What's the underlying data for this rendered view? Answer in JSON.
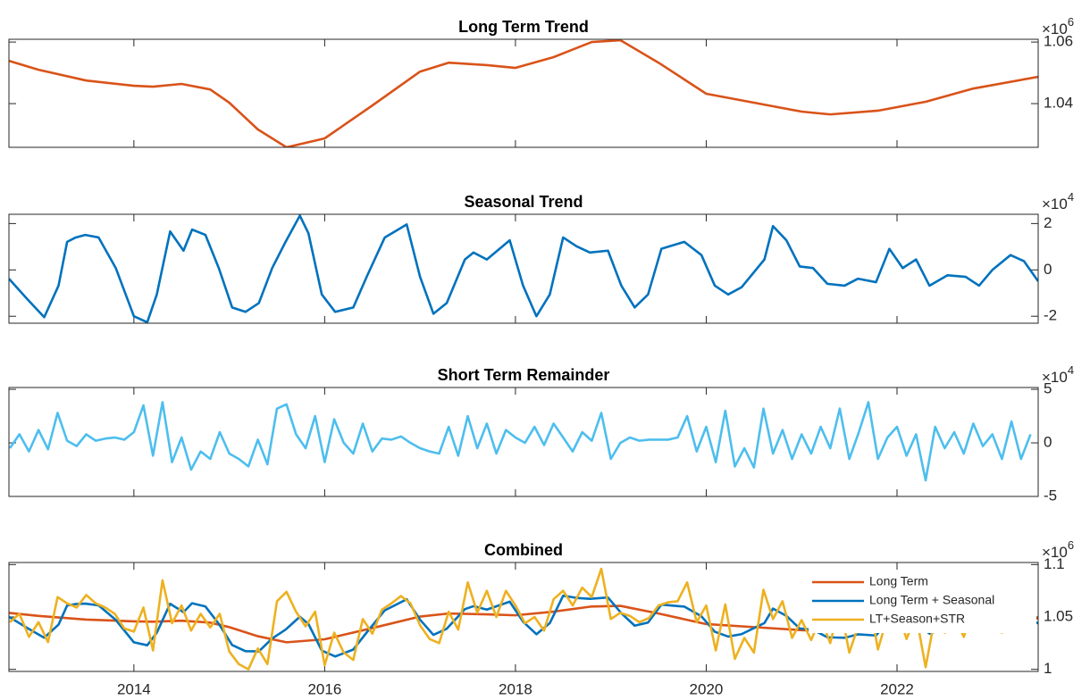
{
  "chart_data": [
    {
      "type": "line",
      "title": "Long Term Trend",
      "y_multiplier": "×10",
      "y_multiplier_exponent": "6",
      "xlim": [
        2012.69,
        2023.48
      ],
      "xticks": [
        2014,
        2016,
        2018,
        2020,
        2022
      ],
      "ylim": [
        1.0258,
        1.0609
      ],
      "yticks": [
        1.04,
        1.06
      ],
      "color": "#D95319",
      "x": [
        2012.69,
        2013,
        2013.5,
        2014,
        2014.2,
        2014.5,
        2014.8,
        2015,
        2015.3,
        2015.6,
        2016,
        2016.5,
        2017,
        2017.3,
        2017.7,
        2018,
        2018.4,
        2018.8,
        2019.1,
        2019.5,
        2020,
        2020.5,
        2021,
        2021.3,
        2021.8,
        2022.3,
        2022.8,
        2023.48
      ],
      "values": [
        1.0539,
        1.051,
        1.0475,
        1.0458,
        1.0455,
        1.0464,
        1.0446,
        1.0403,
        1.0316,
        1.0258,
        1.0287,
        1.0394,
        1.0504,
        1.0533,
        1.0525,
        1.0516,
        1.0551,
        1.06,
        1.0606,
        1.0533,
        1.0432,
        1.0403,
        1.0374,
        1.0365,
        1.0377,
        1.0406,
        1.0449,
        1.0487
      ]
    },
    {
      "type": "line",
      "title": "Seasonal Trend",
      "y_multiplier": "×10",
      "y_multiplier_exponent": "4",
      "xlim": [
        2012.69,
        2023.48
      ],
      "xticks": [
        2014,
        2016,
        2018,
        2020,
        2022
      ],
      "ylim": [
        -2.3,
        2.4
      ],
      "yticks": [
        -2,
        0,
        2
      ],
      "color": "#0072BD",
      "x": [
        2012.69,
        2012.88,
        2013.06,
        2013.21,
        2013.3,
        2013.39,
        2013.49,
        2013.63,
        2013.81,
        2014,
        2014.14,
        2014.24,
        2014.38,
        2014.52,
        2014.61,
        2014.75,
        2014.89,
        2015.03,
        2015.17,
        2015.31,
        2015.45,
        2015.59,
        2015.74,
        2015.83,
        2015.97,
        2016.11,
        2016.3,
        2016.44,
        2016.63,
        2016.86,
        2017,
        2017.14,
        2017.28,
        2017.47,
        2017.56,
        2017.7,
        2017.94,
        2018.08,
        2018.22,
        2018.36,
        2018.5,
        2018.64,
        2018.78,
        2018.97,
        2019.11,
        2019.25,
        2019.39,
        2019.53,
        2019.77,
        2019.95,
        2020.09,
        2020.23,
        2020.37,
        2020.61,
        2020.7,
        2020.84,
        2020.98,
        2021.12,
        2021.27,
        2021.45,
        2021.59,
        2021.78,
        2021.92,
        2022.06,
        2022.2,
        2022.34,
        2022.53,
        2022.72,
        2022.86,
        2023,
        2023.19,
        2023.33,
        2023.48
      ],
      "values": [
        -0.38,
        -1.25,
        -2.04,
        -0.68,
        1.21,
        1.4,
        1.51,
        1.4,
        0.08,
        -2.0,
        -2.26,
        -1.06,
        1.66,
        0.83,
        1.74,
        1.51,
        0.08,
        -1.62,
        -1.81,
        -1.43,
        0.08,
        1.21,
        2.34,
        1.58,
        -1.06,
        -1.81,
        -1.62,
        -0.3,
        1.4,
        1.96,
        -0.3,
        -1.89,
        -1.43,
        0.45,
        0.75,
        0.45,
        1.28,
        -0.68,
        -2.0,
        -1.06,
        1.4,
        1.02,
        0.75,
        0.83,
        -0.68,
        -1.62,
        -1.06,
        0.91,
        1.21,
        0.64,
        -0.68,
        -1.06,
        -0.75,
        0.45,
        1.89,
        1.28,
        0.15,
        0.08,
        -0.6,
        -0.68,
        -0.38,
        -0.53,
        0.91,
        0.08,
        0.45,
        -0.68,
        -0.23,
        -0.3,
        -0.68,
        0,
        0.64,
        0.38,
        -0.49
      ]
    },
    {
      "type": "line",
      "title": "Short Term Remainder",
      "y_multiplier": "×10",
      "y_multiplier_exponent": "4",
      "xlim": [
        2012.69,
        2023.48
      ],
      "xticks": [
        2014,
        2016,
        2018,
        2020,
        2022
      ],
      "ylim": [
        -5,
        5.17
      ],
      "yticks": [
        -5,
        0,
        5
      ],
      "color": "#4DBEEE",
      "x": [
        2012.7,
        2012.8,
        2012.9,
        2013,
        2013.1,
        2013.2,
        2013.3,
        2013.4,
        2013.5,
        2013.6,
        2013.7,
        2013.8,
        2013.9,
        2014,
        2014.1,
        2014.2,
        2014.3,
        2014.4,
        2014.5,
        2014.6,
        2014.7,
        2014.8,
        2014.9,
        2015,
        2015.1,
        2015.2,
        2015.3,
        2015.4,
        2015.5,
        2015.6,
        2015.7,
        2015.8,
        2015.9,
        2016,
        2016.1,
        2016.2,
        2016.3,
        2016.4,
        2016.5,
        2016.6,
        2016.7,
        2016.8,
        2016.9,
        2017,
        2017.1,
        2017.2,
        2017.3,
        2017.4,
        2017.5,
        2017.6,
        2017.7,
        2017.8,
        2017.9,
        2018,
        2018.1,
        2018.2,
        2018.3,
        2018.4,
        2018.5,
        2018.6,
        2018.7,
        2018.8,
        2018.9,
        2019,
        2019.1,
        2019.2,
        2019.3,
        2019.4,
        2019.5,
        2019.6,
        2019.7,
        2019.8,
        2019.9,
        2020,
        2020.1,
        2020.2,
        2020.3,
        2020.4,
        2020.5,
        2020.6,
        2020.7,
        2020.8,
        2020.9,
        2021,
        2021.1,
        2021.2,
        2021.3,
        2021.4,
        2021.5,
        2021.6,
        2021.7,
        2021.8,
        2021.9,
        2022,
        2022.1,
        2022.2,
        2022.3,
        2022.4,
        2022.5,
        2022.6,
        2022.7,
        2022.8,
        2022.9,
        2023,
        2023.1,
        2023.2,
        2023.3,
        2023.4
      ],
      "values": [
        -0.5,
        0.8,
        -0.8,
        1.2,
        -0.6,
        2.8,
        0.2,
        -0.3,
        0.8,
        0.2,
        0.4,
        0.5,
        0.3,
        1.0,
        3.5,
        -1.2,
        3.8,
        -1.8,
        0.5,
        -2.5,
        -0.8,
        -1.5,
        1.0,
        -1.0,
        -1.5,
        -2.2,
        0.3,
        -2.0,
        3.2,
        3.6,
        0.8,
        -0.5,
        2.5,
        -1.8,
        2.2,
        0.0,
        -1.0,
        1.8,
        -0.8,
        0.4,
        0.3,
        0.6,
        0.0,
        -0.5,
        -0.8,
        -1.0,
        1.5,
        -1.2,
        2.5,
        -0.5,
        1.8,
        -1.0,
        1.2,
        0.5,
        0.0,
        1.5,
        -0.2,
        1.8,
        0.5,
        -0.8,
        1.0,
        0.2,
        2.8,
        -1.5,
        0.0,
        0.5,
        0.2,
        0.3,
        0.3,
        0.3,
        0.5,
        2.5,
        -0.8,
        1.5,
        -1.8,
        3.0,
        -2.2,
        -0.5,
        -2.3,
        3.2,
        -1.0,
        1.2,
        -1.5,
        0.8,
        -1.0,
        1.5,
        -0.5,
        3.2,
        -1.5,
        1.0,
        3.8,
        -1.5,
        0.5,
        1.5,
        -1.2,
        0.8,
        -3.5,
        1.5,
        -0.5,
        1.0,
        -1.0,
        1.8,
        -0.3,
        0.8,
        -1.5,
        2.0,
        -1.5,
        0.8
      ]
    },
    {
      "type": "line",
      "title": "Combined",
      "y_multiplier": "×10",
      "y_multiplier_exponent": "6",
      "xlim": [
        2012.69,
        2023.48
      ],
      "xticks": [
        2014,
        2016,
        2018,
        2020,
        2022
      ],
      "ylim": [
        0.998,
        1.102
      ],
      "yticks": [
        1,
        1.05,
        1.1
      ],
      "legend": "northeast",
      "series": [
        {
          "name": "Long Term",
          "color": "#D95319",
          "x": [
            2012.69,
            2013,
            2013.5,
            2014,
            2014.2,
            2014.5,
            2014.8,
            2015,
            2015.3,
            2015.6,
            2016,
            2016.5,
            2017,
            2017.3,
            2017.7,
            2018,
            2018.4,
            2018.8,
            2019.1,
            2019.5,
            2020,
            2020.5,
            2021,
            2021.3,
            2021.8,
            2022.3,
            2022.8,
            2023.48
          ],
          "values": [
            1.0539,
            1.051,
            1.0475,
            1.0458,
            1.0455,
            1.0464,
            1.0446,
            1.0403,
            1.0316,
            1.0258,
            1.0287,
            1.0394,
            1.0504,
            1.0533,
            1.0525,
            1.0516,
            1.0551,
            1.06,
            1.0606,
            1.0533,
            1.0432,
            1.0403,
            1.0374,
            1.0365,
            1.0377,
            1.0406,
            1.0449,
            1.0487
          ]
        },
        {
          "name": "Long Term + Seasonal",
          "color": "#0072BD",
          "x": [
            2012.69,
            2012.88,
            2013.06,
            2013.21,
            2013.3,
            2013.39,
            2013.49,
            2013.63,
            2013.81,
            2014,
            2014.14,
            2014.24,
            2014.38,
            2014.52,
            2014.61,
            2014.75,
            2014.89,
            2015.03,
            2015.17,
            2015.31,
            2015.45,
            2015.59,
            2015.74,
            2015.83,
            2015.97,
            2016.11,
            2016.3,
            2016.44,
            2016.63,
            2016.86,
            2017,
            2017.14,
            2017.28,
            2017.47,
            2017.56,
            2017.7,
            2017.94,
            2018.08,
            2018.22,
            2018.36,
            2018.5,
            2018.64,
            2018.78,
            2018.97,
            2019.11,
            2019.25,
            2019.39,
            2019.53,
            2019.77,
            2019.95,
            2020.09,
            2020.23,
            2020.37,
            2020.61,
            2020.7,
            2020.84,
            2020.98,
            2021.12,
            2021.27,
            2021.45,
            2021.59,
            2021.78,
            2021.92,
            2022.06,
            2022.2,
            2022.34,
            2022.53,
            2022.72,
            2022.86,
            2023,
            2023.19,
            2023.33,
            2023.48
          ],
          "values": [
            1.0501,
            1.0396,
            1.0302,
            1.0427,
            1.061,
            1.0623,
            1.0627,
            1.0611,
            1.0472,
            1.0258,
            1.023,
            1.035,
            1.0626,
            1.0546,
            1.0631,
            1.06,
            1.0435,
            1.0232,
            1.0173,
            1.0171,
            1.0295,
            1.0379,
            1.0502,
            1.0433,
            1.0179,
            1.0123,
            1.0189,
            1.0351,
            1.0563,
            1.0669,
            1.0474,
            1.0329,
            1.0388,
            1.0575,
            1.0603,
            1.057,
            1.0646,
            1.0455,
            1.0335,
            1.0441,
            1.0703,
            1.0682,
            1.0673,
            1.0686,
            1.0536,
            1.0417,
            1.0447,
            1.0618,
            1.0599,
            1.0506,
            1.0359,
            1.0313,
            1.0336,
            1.0442,
            1.058,
            1.0511,
            1.039,
            1.0378,
            1.0306,
            1.0301,
            1.0334,
            1.0323,
            1.0475,
            1.04,
            1.0445,
            1.0341,
            1.0403,
            1.0412,
            1.0384,
            1.046,
            1.0535,
            1.0517,
            1.0438
          ]
        },
        {
          "name": "LT+Season+STR",
          "color": "#EDB120",
          "x": [
            2012.7,
            2012.8,
            2012.9,
            2013,
            2013.1,
            2013.2,
            2013.3,
            2013.4,
            2013.5,
            2013.6,
            2013.7,
            2013.8,
            2013.9,
            2014,
            2014.1,
            2014.2,
            2014.3,
            2014.4,
            2014.5,
            2014.6,
            2014.7,
            2014.8,
            2014.9,
            2015,
            2015.1,
            2015.2,
            2015.3,
            2015.4,
            2015.5,
            2015.6,
            2015.7,
            2015.8,
            2015.9,
            2016,
            2016.1,
            2016.2,
            2016.3,
            2016.4,
            2016.5,
            2016.6,
            2016.7,
            2016.8,
            2016.9,
            2017,
            2017.1,
            2017.2,
            2017.3,
            2017.4,
            2017.5,
            2017.6,
            2017.7,
            2017.8,
            2017.9,
            2018,
            2018.1,
            2018.2,
            2018.3,
            2018.4,
            2018.5,
            2018.6,
            2018.7,
            2018.8,
            2018.9,
            2019,
            2019.1,
            2019.2,
            2019.3,
            2019.4,
            2019.5,
            2019.6,
            2019.7,
            2019.8,
            2019.9,
            2020,
            2020.1,
            2020.2,
            2020.3,
            2020.4,
            2020.5,
            2020.6,
            2020.7,
            2020.8,
            2020.9,
            2021,
            2021.1,
            2021.2,
            2021.3,
            2021.4,
            2021.5,
            2021.6,
            2021.7,
            2021.8,
            2021.9,
            2022,
            2022.1,
            2022.2,
            2022.3,
            2022.4,
            2022.5,
            2022.6,
            2022.7,
            2022.8,
            2022.9,
            2023,
            2023.1,
            2023.2,
            2023.3,
            2023.4
          ],
          "values": [
            1.045,
            1.053,
            1.031,
            1.045,
            1.026,
            1.069,
            1.063,
            1.059,
            1.071,
            1.063,
            1.059,
            1.053,
            1.039,
            1.036,
            1.059,
            1.018,
            1.085,
            1.044,
            1.061,
            1.037,
            1.053,
            1.04,
            1.053,
            1.017,
            1.005,
            1.0,
            1.02,
            1.005,
            1.065,
            1.074,
            1.055,
            1.041,
            1.055,
            1.004,
            1.035,
            1.016,
            1.009,
            1.048,
            1.034,
            1.057,
            1.063,
            1.07,
            1.063,
            1.042,
            1.029,
            1.025,
            1.055,
            1.038,
            1.083,
            1.054,
            1.075,
            1.05,
            1.075,
            1.061,
            1.044,
            1.05,
            1.037,
            1.067,
            1.075,
            1.061,
            1.078,
            1.069,
            1.096,
            1.048,
            1.054,
            1.051,
            1.045,
            1.049,
            1.061,
            1.064,
            1.065,
            1.083,
            1.045,
            1.061,
            1.018,
            1.062,
            1.01,
            1.03,
            1.016,
            1.076,
            1.048,
            1.065,
            1.03,
            1.047,
            1.028,
            1.049,
            1.025,
            1.062,
            1.016,
            1.043,
            1.071,
            1.019,
            1.05,
            1.058,
            1.029,
            1.052,
            1.002,
            1.051,
            1.035,
            1.051,
            1.031,
            1.058,
            1.037,
            1.054,
            1.035,
            1.073,
            1.037,
            1.056
          ]
        }
      ]
    }
  ]
}
